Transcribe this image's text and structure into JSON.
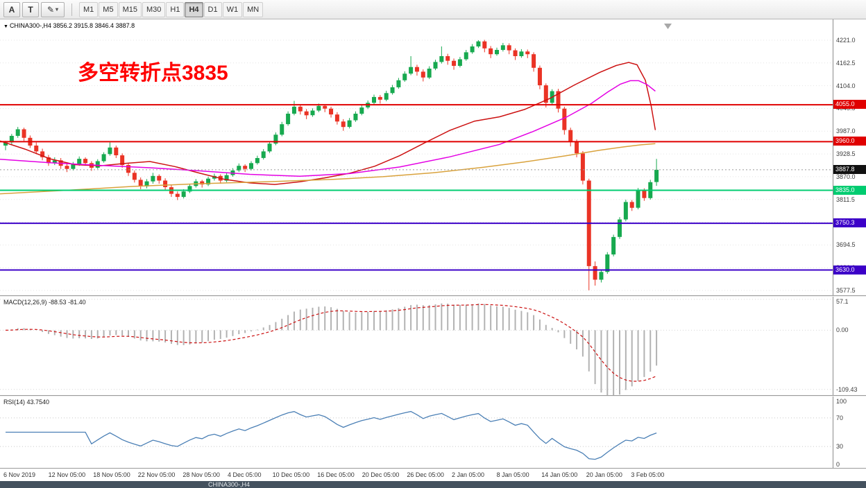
{
  "toolbar": {
    "tools": [
      {
        "label": "A"
      },
      {
        "label": "T"
      }
    ],
    "shapes_button": {
      "icon": "pencil-icon",
      "caret": "▾"
    },
    "timeframes": [
      {
        "label": "M1",
        "active": false
      },
      {
        "label": "M5",
        "active": false
      },
      {
        "label": "M15",
        "active": false
      },
      {
        "label": "M30",
        "active": false
      },
      {
        "label": "H1",
        "active": false
      },
      {
        "label": "H4",
        "active": true
      },
      {
        "label": "D1",
        "active": false
      },
      {
        "label": "W1",
        "active": false
      },
      {
        "label": "MN",
        "active": false
      }
    ]
  },
  "main_chart": {
    "symbol": "CHINA300-,H4",
    "ohlc": "3856.2 3915.8 3846.4 3887.8",
    "annotation": "多空转折点3835",
    "annotation_color": "#ff0000",
    "price_badge": {
      "label": "3887.8",
      "value": 3887.8,
      "color": "#111111"
    },
    "y_ticks": [
      {
        "label": "4221.0",
        "value": 4221.0
      },
      {
        "label": "4162.5",
        "value": 4162.5
      },
      {
        "label": "4104.0",
        "value": 4104.0
      },
      {
        "label": "4045.5",
        "value": 4045.5
      },
      {
        "label": "3987.0",
        "value": 3987.0
      },
      {
        "label": "3928.5",
        "value": 3928.5
      },
      {
        "label": "3870.0",
        "value": 3870.0
      },
      {
        "label": "3811.5",
        "value": 3811.5
      },
      {
        "label": "3753.0",
        "value": 3753.0
      },
      {
        "label": "3694.5",
        "value": 3694.5
      },
      {
        "label": "3636.0",
        "value": 3636.0
      },
      {
        "label": "3577.5",
        "value": 3577.5
      }
    ]
  },
  "macd_panel": {
    "label": "MACD(12,26,9)",
    "values": "-88.53 -81.40",
    "ticks": [
      {
        "label": "57.1",
        "value": 57.1
      },
      {
        "label": "0.00",
        "value": 0
      },
      {
        "label": "-109.43",
        "value": -109.43
      }
    ]
  },
  "rsi_panel": {
    "label": "RSI(14)",
    "value": "43.7540",
    "ticks": [
      {
        "label": "100",
        "value": 100
      },
      {
        "label": "70",
        "value": 70
      },
      {
        "label": "30",
        "value": 30
      },
      {
        "label": "0",
        "value": 0
      }
    ]
  },
  "time_axis": {
    "labels": [
      "6 Nov 2019",
      "12 Nov 05:00",
      "18 Nov 05:00",
      "22 Nov 05:00",
      "28 Nov 05:00",
      "4 Dec 05:00",
      "10 Dec 05:00",
      "16 Dec 05:00",
      "20 Dec 05:00",
      "26 Dec 05:00",
      "2 Jan 05:00",
      "8 Jan 05:00",
      "14 Jan 05:00",
      "20 Jan 05:00",
      "3 Feb 05:00"
    ]
  },
  "bottom_bar": {
    "tab": "CHINA300-,H4"
  },
  "chart_data": {
    "type": "candlestick",
    "symbol": "CHINA300-",
    "timeframe": "H4",
    "current_bar": {
      "open": 3856.2,
      "high": 3915.8,
      "low": 3846.4,
      "close": 3887.8
    },
    "y_range": [
      3565,
      4274.5
    ],
    "colors": {
      "bull": "#17a94f",
      "bear": "#ea3325",
      "grid": "#e4e4e4",
      "macd_hist": "#b2b2b2",
      "macd_signal": "#cc1111",
      "rsi_line": "#4a7fb5"
    },
    "candles": [
      [
        3950,
        3962,
        3938,
        3958
      ],
      [
        3958,
        3980,
        3952,
        3975
      ],
      [
        3975,
        3998,
        3970,
        3992
      ],
      [
        3992,
        3996,
        3962,
        3970
      ],
      [
        3970,
        3976,
        3944,
        3950
      ],
      [
        3950,
        3958,
        3928,
        3935
      ],
      [
        3935,
        3942,
        3912,
        3920
      ],
      [
        3920,
        3926,
        3898,
        3905
      ],
      [
        3905,
        3920,
        3900,
        3912
      ],
      [
        3912,
        3918,
        3890,
        3898
      ],
      [
        3898,
        3905,
        3882,
        3890
      ],
      [
        3890,
        3908,
        3886,
        3902
      ],
      [
        3902,
        3922,
        3898,
        3916
      ],
      [
        3916,
        3920,
        3898,
        3905
      ],
      [
        3905,
        3910,
        3885,
        3893
      ],
      [
        3893,
        3915,
        3890,
        3910
      ],
      [
        3910,
        3933,
        3906,
        3928
      ],
      [
        3928,
        3958,
        3924,
        3945
      ],
      [
        3945,
        3950,
        3918,
        3925
      ],
      [
        3925,
        3930,
        3893,
        3900
      ],
      [
        3900,
        3906,
        3872,
        3880
      ],
      [
        3880,
        3886,
        3855,
        3862
      ],
      [
        3862,
        3868,
        3838,
        3845
      ],
      [
        3845,
        3864,
        3840,
        3858
      ],
      [
        3858,
        3880,
        3852,
        3872
      ],
      [
        3872,
        3876,
        3852,
        3860
      ],
      [
        3860,
        3866,
        3836,
        3843
      ],
      [
        3843,
        3848,
        3818,
        3826
      ],
      [
        3826,
        3832,
        3810,
        3818
      ],
      [
        3818,
        3838,
        3814,
        3832
      ],
      [
        3832,
        3852,
        3828,
        3846
      ],
      [
        3846,
        3864,
        3842,
        3858
      ],
      [
        3858,
        3862,
        3842,
        3850
      ],
      [
        3850,
        3870,
        3846,
        3865
      ],
      [
        3865,
        3878,
        3860,
        3872
      ],
      [
        3872,
        3876,
        3852,
        3860
      ],
      [
        3860,
        3880,
        3856,
        3874
      ],
      [
        3874,
        3892,
        3870,
        3886
      ],
      [
        3886,
        3904,
        3882,
        3898
      ],
      [
        3898,
        3902,
        3882,
        3890
      ],
      [
        3890,
        3910,
        3886,
        3905
      ],
      [
        3905,
        3924,
        3901,
        3918
      ],
      [
        3918,
        3941,
        3914,
        3935
      ],
      [
        3935,
        3961,
        3931,
        3955
      ],
      [
        3955,
        3984,
        3951,
        3978
      ],
      [
        3978,
        4011,
        3974,
        4005
      ],
      [
        4005,
        4038,
        4001,
        4032
      ],
      [
        4032,
        4065,
        4028,
        4050
      ],
      [
        4050,
        4056,
        4030,
        4038
      ],
      [
        4038,
        4044,
        4018,
        4028
      ],
      [
        4028,
        4046,
        4024,
        4040
      ],
      [
        4040,
        4058,
        4036,
        4052
      ],
      [
        4052,
        4056,
        4036,
        4045
      ],
      [
        4045,
        4050,
        4022,
        4030
      ],
      [
        4030,
        4036,
        4004,
        4012
      ],
      [
        4012,
        4018,
        3988,
        3998
      ],
      [
        3998,
        4021,
        3994,
        4015
      ],
      [
        4015,
        4038,
        4011,
        4032
      ],
      [
        4032,
        4054,
        4028,
        4048
      ],
      [
        4048,
        4066,
        4044,
        4060
      ],
      [
        4060,
        4081,
        4056,
        4075
      ],
      [
        4075,
        4080,
        4058,
        4068
      ],
      [
        4068,
        4091,
        4064,
        4085
      ],
      [
        4085,
        4106,
        4081,
        4100
      ],
      [
        4100,
        4124,
        4096,
        4118
      ],
      [
        4118,
        4141,
        4114,
        4135
      ],
      [
        4135,
        4180,
        4131,
        4152
      ],
      [
        4152,
        4158,
        4130,
        4140
      ],
      [
        4140,
        4146,
        4115,
        4125
      ],
      [
        4125,
        4154,
        4121,
        4148
      ],
      [
        4148,
        4171,
        4144,
        4165
      ],
      [
        4165,
        4205,
        4161,
        4180
      ],
      [
        4180,
        4186,
        4158,
        4168
      ],
      [
        4168,
        4174,
        4145,
        4155
      ],
      [
        4155,
        4178,
        4151,
        4172
      ],
      [
        4172,
        4196,
        4168,
        4190
      ],
      [
        4190,
        4211,
        4186,
        4205
      ],
      [
        4205,
        4221,
        4201,
        4218
      ],
      [
        4218,
        4222,
        4190,
        4200
      ],
      [
        4200,
        4206,
        4175,
        4185
      ],
      [
        4185,
        4202,
        4181,
        4196
      ],
      [
        4196,
        4214,
        4192,
        4208
      ],
      [
        4208,
        4213,
        4185,
        4195
      ],
      [
        4195,
        4200,
        4170,
        4180
      ],
      [
        4180,
        4198,
        4176,
        4192
      ],
      [
        4192,
        4197,
        4175,
        4185
      ],
      [
        4185,
        4190,
        4140,
        4150
      ],
      [
        4150,
        4156,
        4095,
        4105
      ],
      [
        4105,
        4110,
        4048,
        4060
      ],
      [
        4060,
        4095,
        4056,
        4090
      ],
      [
        4090,
        4096,
        4035,
        4045
      ],
      [
        4045,
        4050,
        3978,
        3990
      ],
      [
        3990,
        3996,
        3948,
        3960
      ],
      [
        3960,
        3966,
        3920,
        3930
      ],
      [
        3930,
        3936,
        3850,
        3860
      ],
      [
        3860,
        3865,
        3578,
        3640
      ],
      [
        3640,
        3652,
        3590,
        3605
      ],
      [
        3605,
        3630,
        3598,
        3625
      ],
      [
        3625,
        3676,
        3620,
        3670
      ],
      [
        3670,
        3721,
        3665,
        3715
      ],
      [
        3715,
        3766,
        3710,
        3760
      ],
      [
        3760,
        3811,
        3755,
        3805
      ],
      [
        3805,
        3810,
        3782,
        3790
      ],
      [
        3790,
        3841,
        3786,
        3835
      ],
      [
        3835,
        3840,
        3808,
        3815
      ],
      [
        3815,
        3862,
        3811,
        3856
      ],
      [
        3856.2,
        3915.8,
        3846.4,
        3887.8
      ]
    ],
    "overlays": [
      {
        "name": "ma-fast-red",
        "color": "#cc1111",
        "points": [
          [
            0,
            3962
          ],
          [
            0.03,
            3941
          ],
          [
            0.06,
            3916
          ],
          [
            0.09,
            3901
          ],
          [
            0.12,
            3898
          ],
          [
            0.15,
            3904
          ],
          [
            0.18,
            3909
          ],
          [
            0.21,
            3896
          ],
          [
            0.24,
            3879
          ],
          [
            0.27,
            3863
          ],
          [
            0.3,
            3854
          ],
          [
            0.33,
            3850
          ],
          [
            0.36,
            3857
          ],
          [
            0.39,
            3867
          ],
          [
            0.42,
            3879
          ],
          [
            0.45,
            3897
          ],
          [
            0.48,
            3924
          ],
          [
            0.51,
            3957
          ],
          [
            0.54,
            3989
          ],
          [
            0.57,
            4013
          ],
          [
            0.6,
            4024
          ],
          [
            0.63,
            4043
          ],
          [
            0.66,
            4071
          ],
          [
            0.69,
            4106
          ],
          [
            0.72,
            4138
          ],
          [
            0.74,
            4156
          ],
          [
            0.755,
            4164
          ],
          [
            0.765,
            4158
          ],
          [
            0.775,
            4118
          ],
          [
            0.782,
            4052
          ],
          [
            0.787,
            3990
          ]
        ]
      },
      {
        "name": "ma-mid-magenta",
        "color": "#e400e4",
        "points": [
          [
            0,
            3915
          ],
          [
            0.06,
            3906
          ],
          [
            0.12,
            3899
          ],
          [
            0.18,
            3893
          ],
          [
            0.24,
            3885
          ],
          [
            0.3,
            3876
          ],
          [
            0.36,
            3871
          ],
          [
            0.42,
            3878
          ],
          [
            0.48,
            3895
          ],
          [
            0.54,
            3921
          ],
          [
            0.6,
            3953
          ],
          [
            0.64,
            3986
          ],
          [
            0.68,
            4023
          ],
          [
            0.71,
            4058
          ],
          [
            0.73,
            4088
          ],
          [
            0.745,
            4108
          ],
          [
            0.757,
            4117
          ],
          [
            0.767,
            4117
          ],
          [
            0.777,
            4107
          ],
          [
            0.787,
            4090
          ]
        ]
      },
      {
        "name": "ma-slow-orange",
        "color": "#d9a23c",
        "points": [
          [
            0,
            3826
          ],
          [
            0.08,
            3835
          ],
          [
            0.16,
            3845
          ],
          [
            0.24,
            3852
          ],
          [
            0.32,
            3857
          ],
          [
            0.4,
            3863
          ],
          [
            0.46,
            3870
          ],
          [
            0.52,
            3880
          ],
          [
            0.58,
            3894
          ],
          [
            0.63,
            3908
          ],
          [
            0.68,
            3924
          ],
          [
            0.72,
            3938
          ],
          [
            0.75,
            3947
          ],
          [
            0.77,
            3952
          ],
          [
            0.787,
            3955
          ]
        ]
      }
    ],
    "hlines": [
      {
        "value": 4055.0,
        "label": "4055.0",
        "color": "#e00000"
      },
      {
        "value": 3960.0,
        "label": "3960.0",
        "color": "#e00000"
      },
      {
        "value": 3835.0,
        "label": "3835.0",
        "color": "#00cc70"
      },
      {
        "value": 3750.3,
        "label": "3750.3",
        "color": "#3c00c8"
      },
      {
        "value": 3630.0,
        "label": "3630.0",
        "color": "#3c00c8"
      }
    ],
    "last_price": 3887.8,
    "macd": {
      "params": [
        12,
        26,
        9
      ],
      "value": -88.53,
      "signal": -81.4,
      "range": [
        -120,
        62
      ]
    },
    "rsi": {
      "period": 14,
      "value": 43.754,
      "range": [
        0,
        100
      ],
      "levels": [
        70,
        30
      ]
    }
  }
}
